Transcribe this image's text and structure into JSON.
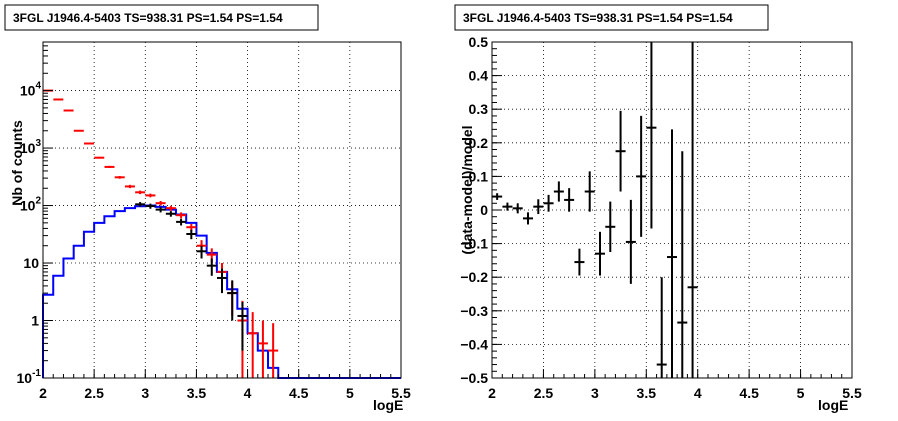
{
  "chart_data": [
    {
      "type": "histogram",
      "title": "3FGL J1946.4-5403 TS=938.31 PS=1.54 PS=1.54",
      "xlabel": "logE",
      "ylabel": "Nb of counts",
      "xlim": [
        2,
        5.5
      ],
      "ylim": [
        0.1,
        70000
      ],
      "yscale": "log",
      "grid": true,
      "x_ticks": [
        "2",
        "2.5",
        "3",
        "3.5",
        "4",
        "4.5",
        "5",
        "5.5"
      ],
      "y_ticks": [
        {
          "value": 0.1,
          "base": "10",
          "exp": "-1"
        },
        {
          "value": 1,
          "base": "1",
          "exp": ""
        },
        {
          "value": 10,
          "base": "10",
          "exp": ""
        },
        {
          "value": 100,
          "base": "10",
          "exp": "2"
        },
        {
          "value": 1000,
          "base": "10",
          "exp": "3"
        },
        {
          "value": 10000,
          "base": "10",
          "exp": "4"
        }
      ],
      "bin_edges": [
        2,
        2.1,
        2.2,
        2.3,
        2.4,
        2.5,
        2.6,
        2.7,
        2.8,
        2.9,
        3.0,
        3.1,
        3.2,
        3.3,
        3.4,
        3.5,
        3.6,
        3.7,
        3.8,
        3.9,
        4.0,
        4.1,
        4.2,
        4.3,
        5.5
      ],
      "series": [
        {
          "color": "#0000ff",
          "style": "step",
          "values": [
            2.8,
            6,
            12,
            20,
            35,
            50,
            65,
            80,
            90,
            97,
            100,
            95,
            85,
            70,
            50,
            30,
            15,
            7,
            3.5,
            1.6,
            0.6,
            0.3,
            0.15,
            0.1
          ]
        },
        {
          "color": "#ff0000",
          "style": "errorbar",
          "x": [
            2.05,
            2.15,
            2.25,
            2.35,
            2.45,
            2.55,
            2.65,
            2.75,
            2.85,
            2.95,
            3.05,
            3.15,
            3.25,
            3.35,
            3.45,
            3.55,
            3.65,
            3.75,
            3.85,
            3.95,
            4.05,
            4.15,
            4.25
          ],
          "y": [
            10000,
            7000,
            4500,
            2000,
            1200,
            680,
            470,
            310,
            215,
            170,
            150,
            110,
            90,
            68,
            42,
            20,
            14,
            7,
            3,
            1,
            0.6,
            0.4,
            0.3
          ],
          "err_lo": [
            100,
            80,
            60,
            40,
            30,
            25,
            20,
            17,
            14,
            12,
            11,
            10,
            9,
            8,
            6,
            5,
            4,
            3,
            1.8,
            0.9,
            0.5,
            0.35,
            0.25
          ],
          "err_hi": [
            100,
            80,
            60,
            40,
            30,
            25,
            20,
            17,
            14,
            12,
            11,
            10,
            9,
            8,
            6,
            5,
            4,
            3,
            1.8,
            1.2,
            0.8,
            0.6,
            0.6
          ]
        },
        {
          "color": "#000000",
          "style": "errorbar",
          "x": [
            2.95,
            3.05,
            3.15,
            3.25,
            3.35,
            3.45,
            3.55,
            3.65,
            3.75,
            3.85,
            3.95
          ],
          "y": [
            105,
            98,
            85,
            72,
            52,
            32,
            16,
            9,
            5.5,
            3,
            1.2
          ],
          "err_lo": [
            10,
            10,
            9,
            8,
            7,
            6,
            4,
            3,
            2.5,
            2,
            0.9
          ],
          "err_hi": [
            10,
            10,
            9,
            8,
            7,
            6,
            4,
            3,
            2.5,
            2,
            0.9
          ]
        }
      ]
    },
    {
      "type": "scatter",
      "title": "3FGL J1946.4-5403 TS=938.31 PS=1.54 PS=1.54",
      "xlabel": "logE",
      "ylabel": "(data-model)/model",
      "xlim": [
        2,
        5.5
      ],
      "ylim": [
        -0.5,
        0.5
      ],
      "grid": true,
      "x_ticks": [
        "2",
        "2.5",
        "3",
        "3.5",
        "4",
        "4.5",
        "5",
        "5.5"
      ],
      "y_ticks": [
        "−0.5",
        "−0.4",
        "−0.3",
        "−0.2",
        "−0.1",
        "0",
        "0.1",
        "0.2",
        "0.3",
        "0.4",
        "0.5"
      ],
      "series": [
        {
          "color": "#000000",
          "style": "errorbar",
          "x": [
            2.05,
            2.15,
            2.25,
            2.35,
            2.45,
            2.55,
            2.65,
            2.75,
            2.85,
            2.95,
            3.05,
            3.15,
            3.25,
            3.35,
            3.45,
            3.55,
            3.65,
            3.75,
            3.85,
            3.95
          ],
          "y": [
            0.04,
            0.01,
            0.005,
            -0.025,
            0.01,
            0.02,
            0.055,
            0.03,
            -0.155,
            0.055,
            -0.13,
            -0.05,
            0.175,
            -0.095,
            0.1,
            0.245,
            -0.46,
            -0.14,
            -0.335,
            -0.23
          ],
          "err": [
            0.01,
            0.012,
            0.015,
            0.018,
            0.022,
            0.025,
            0.03,
            0.035,
            0.04,
            0.06,
            0.065,
            0.075,
            0.12,
            0.125,
            0.18,
            0.3,
            0.26,
            0.38,
            0.51,
            0.75
          ]
        }
      ]
    }
  ]
}
